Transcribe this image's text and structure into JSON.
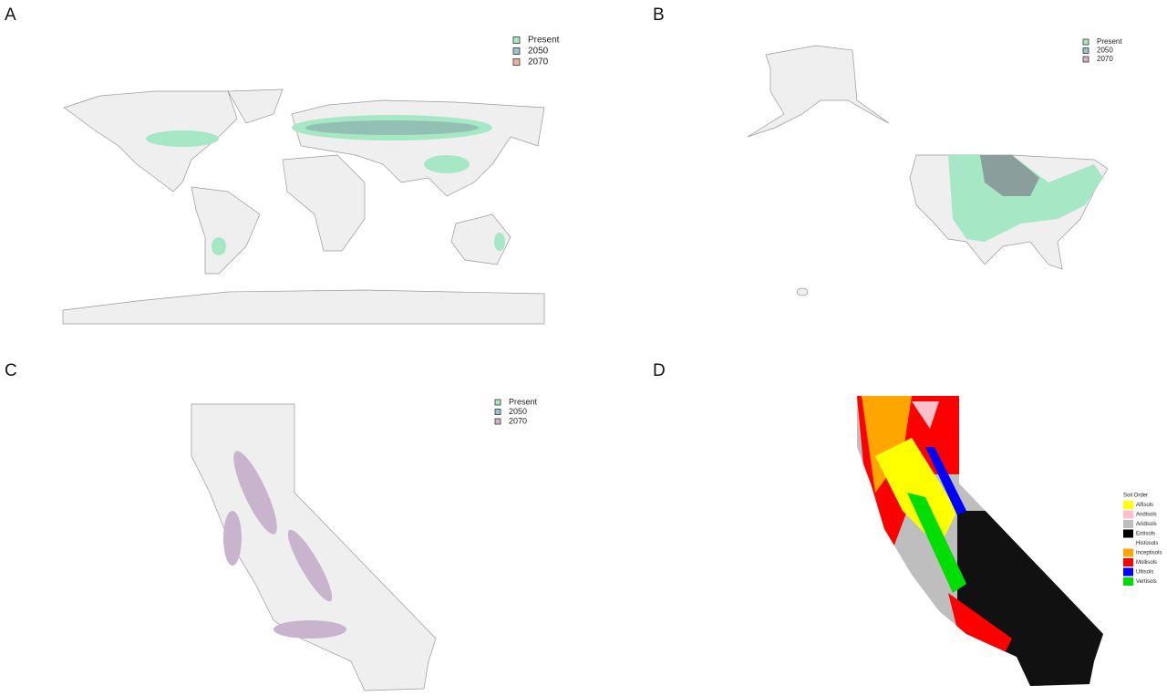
{
  "panels": [
    {
      "label": "A",
      "legend": {
        "items": [
          {
            "name": "Present",
            "color": "#a6e8c6"
          },
          {
            "name": "2050",
            "color": "#9cc4cc"
          },
          {
            "name": "2070",
            "color": "#e8b49c"
          }
        ]
      }
    },
    {
      "label": "B",
      "legend": {
        "items": [
          {
            "name": "Present",
            "color": "#a6e8c6"
          },
          {
            "name": "2050",
            "color": "#9cc4cc"
          },
          {
            "name": "2070",
            "color": "#d8b4cc"
          }
        ]
      }
    },
    {
      "label": "C",
      "legend": {
        "items": [
          {
            "name": "Present",
            "color": "#a6e8c6"
          },
          {
            "name": "2050",
            "color": "#9cc4cc"
          },
          {
            "name": "2070",
            "color": "#d8b4cc"
          }
        ]
      }
    },
    {
      "label": "D",
      "legend": {
        "title": "Soil Order",
        "items": [
          {
            "name": "Alfisols",
            "color": "#ffff00"
          },
          {
            "name": "Andisols",
            "color": "#ffc0cb"
          },
          {
            "name": "Aridisols",
            "color": "#bebebe"
          },
          {
            "name": "Entisols",
            "color": "#000000"
          },
          {
            "name": "Histosols",
            "color": "#ffffff"
          },
          {
            "name": "Inceptisols",
            "color": "#ffa500"
          },
          {
            "name": "Mollisols",
            "color": "#ff0000"
          },
          {
            "name": "Ultisols",
            "color": "#0000ff"
          },
          {
            "name": "Vertisols",
            "color": "#00dd00"
          }
        ]
      }
    }
  ]
}
